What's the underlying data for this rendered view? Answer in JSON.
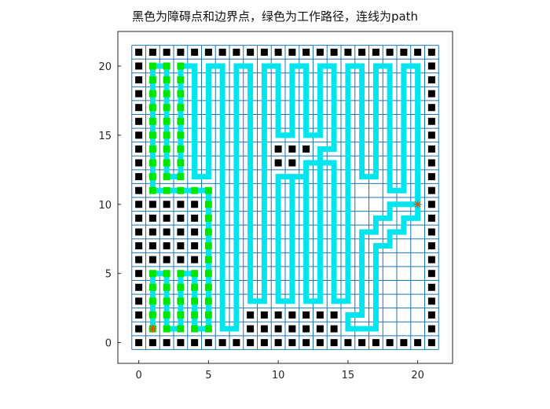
{
  "chart_data": {
    "type": "scatter",
    "title": "黑色为障碍点和边界点，绿色为工作路径，连线为path",
    "xlabel": "",
    "ylabel": "",
    "xlim": [
      -1.5,
      22.5
    ],
    "ylim": [
      -1.5,
      22.5
    ],
    "grid": true,
    "xticks": [
      0,
      5,
      10,
      15,
      20
    ],
    "yticks": [
      0,
      5,
      10,
      15,
      20
    ],
    "grid_range": [
      0,
      21
    ],
    "colors": {
      "obstacle": "#000000",
      "work_path": "#00e600",
      "path": "#00e5ee",
      "grid": "#1f77b4",
      "marker": "#d95319"
    },
    "series": [
      {
        "kind": "obstacle_points",
        "rows": [
          {
            "y": 21,
            "x": [
              0,
              1,
              2,
              3,
              4,
              5,
              6,
              7,
              8,
              9,
              10,
              11,
              12,
              13,
              14,
              15,
              16,
              17,
              18,
              19,
              20,
              21
            ]
          },
          {
            "y": 20,
            "x": [
              0,
              21
            ]
          },
          {
            "y": 19,
            "x": [
              0,
              21
            ]
          },
          {
            "y": 18,
            "x": [
              0,
              21
            ]
          },
          {
            "y": 17,
            "x": [
              0,
              21
            ]
          },
          {
            "y": 16,
            "x": [
              0,
              21
            ]
          },
          {
            "y": 15,
            "x": [
              0,
              21
            ]
          },
          {
            "y": 14,
            "x": [
              0,
              10,
              11,
              12,
              21
            ]
          },
          {
            "y": 13,
            "x": [
              0,
              10,
              11,
              21
            ]
          },
          {
            "y": 12,
            "x": [
              0,
              21
            ]
          },
          {
            "y": 11,
            "x": [
              0,
              21
            ]
          },
          {
            "y": 10,
            "x": [
              0,
              1,
              2,
              3,
              4,
              21
            ]
          },
          {
            "y": 9,
            "x": [
              0,
              1,
              2,
              3,
              4,
              21
            ]
          },
          {
            "y": 8,
            "x": [
              0,
              1,
              2,
              3,
              4,
              21
            ]
          },
          {
            "y": 7,
            "x": [
              0,
              1,
              2,
              3,
              4,
              21
            ]
          },
          {
            "y": 6,
            "x": [
              0,
              1,
              2,
              3,
              4,
              21
            ]
          },
          {
            "y": 5,
            "x": [
              0,
              21
            ]
          },
          {
            "y": 4,
            "x": [
              0,
              21
            ]
          },
          {
            "y": 3,
            "x": [
              0,
              21
            ]
          },
          {
            "y": 2,
            "x": [
              0,
              8,
              9,
              10,
              11,
              12,
              13,
              14,
              21
            ]
          },
          {
            "y": 1,
            "x": [
              0,
              8,
              9,
              10,
              11,
              12,
              13,
              14,
              21
            ]
          },
          {
            "y": 0,
            "x": [
              0,
              1,
              2,
              3,
              4,
              5,
              6,
              7,
              8,
              9,
              10,
              11,
              12,
              13,
              14,
              15,
              16,
              17,
              18,
              19,
              20,
              21
            ]
          }
        ]
      },
      {
        "kind": "work_points",
        "points": [
          [
            1,
            20
          ],
          [
            1,
            19
          ],
          [
            1,
            18
          ],
          [
            1,
            17
          ],
          [
            1,
            16
          ],
          [
            1,
            15
          ],
          [
            1,
            14
          ],
          [
            1,
            13
          ],
          [
            1,
            12
          ],
          [
            2,
            20
          ],
          [
            2,
            19
          ],
          [
            2,
            18
          ],
          [
            2,
            17
          ],
          [
            2,
            16
          ],
          [
            2,
            15
          ],
          [
            2,
            14
          ],
          [
            2,
            13
          ],
          [
            2,
            12
          ],
          [
            3,
            20
          ],
          [
            3,
            19
          ],
          [
            3,
            18
          ],
          [
            3,
            17
          ],
          [
            3,
            16
          ],
          [
            3,
            15
          ],
          [
            3,
            14
          ],
          [
            3,
            13
          ],
          [
            3,
            12
          ],
          [
            1,
            11
          ],
          [
            2,
            11
          ],
          [
            3,
            11
          ],
          [
            4,
            11
          ],
          [
            5,
            11
          ],
          [
            5,
            10
          ],
          [
            5,
            9
          ],
          [
            5,
            8
          ],
          [
            5,
            7
          ],
          [
            5,
            6
          ],
          [
            5,
            5
          ],
          [
            5,
            4
          ],
          [
            5,
            3
          ],
          [
            5,
            2
          ],
          [
            5,
            1
          ],
          [
            1,
            5
          ],
          [
            1,
            4
          ],
          [
            1,
            3
          ],
          [
            1,
            2
          ],
          [
            1,
            1
          ],
          [
            2,
            5
          ],
          [
            2,
            4
          ],
          [
            2,
            3
          ],
          [
            2,
            2
          ],
          [
            2,
            1
          ],
          [
            3,
            5
          ],
          [
            3,
            4
          ],
          [
            3,
            3
          ],
          [
            3,
            2
          ],
          [
            3,
            1
          ],
          [
            4,
            5
          ],
          [
            4,
            4
          ],
          [
            4,
            3
          ],
          [
            4,
            2
          ],
          [
            4,
            1
          ]
        ]
      },
      {
        "kind": "path",
        "points": [
          [
            1,
            1
          ],
          [
            1,
            5
          ],
          [
            2,
            5
          ],
          [
            2,
            1
          ],
          [
            3,
            1
          ],
          [
            3,
            5
          ],
          [
            4,
            5
          ],
          [
            4,
            1
          ],
          [
            5,
            1
          ],
          [
            5,
            11
          ],
          [
            1,
            11
          ],
          [
            1,
            20
          ],
          [
            2,
            20
          ],
          [
            2,
            12
          ],
          [
            3,
            12
          ],
          [
            3,
            20
          ],
          [
            4,
            20
          ],
          [
            4,
            12
          ],
          [
            5,
            12
          ],
          [
            5,
            20
          ],
          [
            6,
            20
          ],
          [
            6,
            1
          ],
          [
            7,
            1
          ],
          [
            7,
            20
          ],
          [
            8,
            20
          ],
          [
            8,
            3
          ],
          [
            9,
            3
          ],
          [
            9,
            20
          ],
          [
            10,
            20
          ],
          [
            10,
            15
          ],
          [
            11,
            15
          ],
          [
            11,
            20
          ],
          [
            12,
            20
          ],
          [
            12,
            15
          ],
          [
            13,
            15
          ],
          [
            13,
            20
          ],
          [
            14,
            20
          ],
          [
            14,
            14
          ],
          [
            13,
            14
          ],
          [
            13,
            13
          ],
          [
            12,
            13
          ],
          [
            12,
            12
          ],
          [
            10,
            12
          ],
          [
            10,
            3
          ],
          [
            11,
            3
          ],
          [
            11,
            12
          ],
          [
            12,
            12
          ],
          [
            12,
            3
          ],
          [
            13,
            3
          ],
          [
            13,
            13
          ],
          [
            14,
            13
          ],
          [
            14,
            3
          ],
          [
            15,
            3
          ],
          [
            15,
            14
          ],
          [
            15,
            20
          ],
          [
            16,
            20
          ],
          [
            16,
            12
          ],
          [
            17,
            12
          ],
          [
            17,
            20
          ],
          [
            18,
            20
          ],
          [
            18,
            11
          ],
          [
            19,
            11
          ],
          [
            19,
            20
          ],
          [
            20,
            20
          ],
          [
            20,
            10
          ],
          [
            18,
            10
          ],
          [
            18,
            9
          ],
          [
            17,
            9
          ],
          [
            17,
            8
          ],
          [
            16,
            8
          ],
          [
            16,
            2
          ],
          [
            15,
            2
          ],
          [
            15,
            1
          ],
          [
            17,
            1
          ],
          [
            17,
            7
          ],
          [
            18,
            7
          ],
          [
            18,
            8
          ],
          [
            19,
            8
          ],
          [
            19,
            9
          ],
          [
            20,
            9
          ],
          [
            20,
            10
          ]
        ]
      },
      {
        "kind": "markers",
        "points": [
          [
            1,
            1
          ],
          [
            20,
            10
          ]
        ]
      }
    ]
  }
}
